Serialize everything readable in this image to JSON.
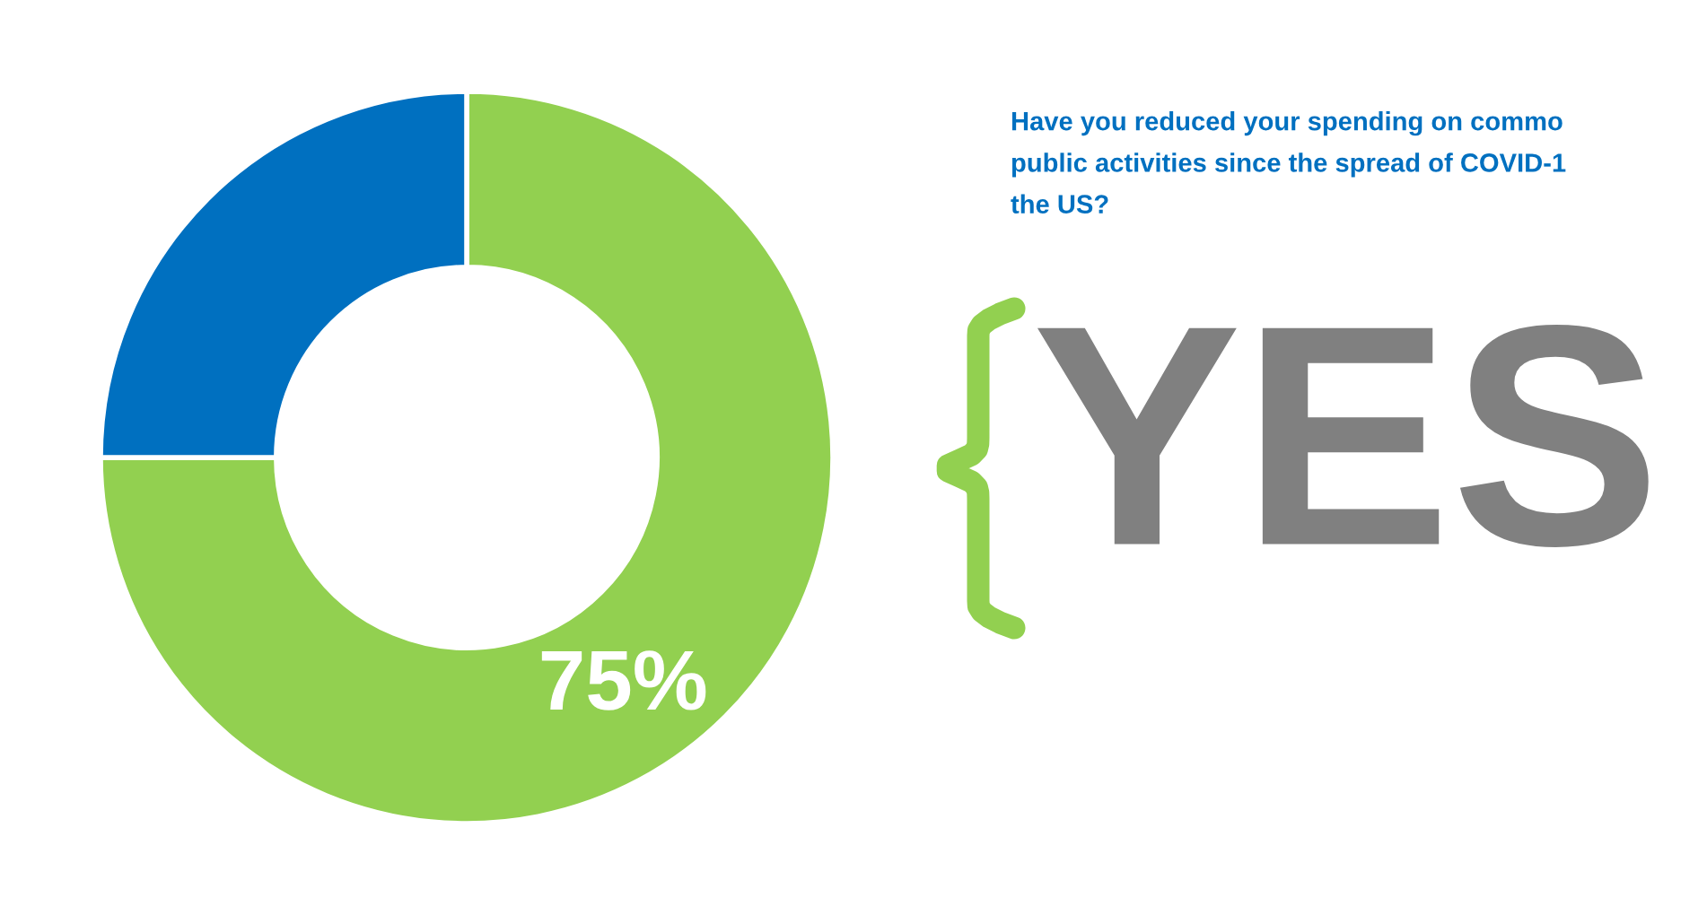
{
  "chart_data": {
    "type": "donut",
    "title": "Have you reduced your spending on commo\npublic activities since the spread of COVID-1\nthe US?",
    "categories": [
      null,
      null
    ],
    "values": [
      75,
      25
    ],
    "colors": [
      "#92d050",
      "#0070c0"
    ],
    "value_labels": [
      "75%",
      null
    ],
    "annotations": [
      "YES"
    ],
    "legend": false
  }
}
